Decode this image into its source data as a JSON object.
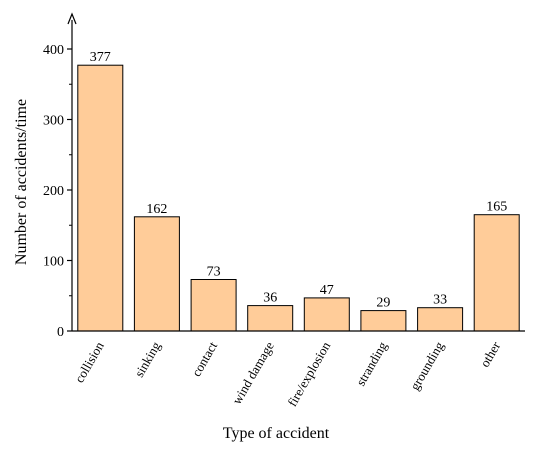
{
  "chart_data": {
    "type": "bar",
    "categories": [
      "collision",
      "sinking",
      "contact",
      "wind damage",
      "fire/explosion",
      "stranding",
      "grounding",
      "other"
    ],
    "values": [
      377,
      162,
      73,
      36,
      47,
      29,
      33,
      165
    ],
    "data_labels": [
      "377",
      "162",
      "73",
      "36",
      "47",
      "29",
      "33",
      "165"
    ],
    "title": "",
    "xlabel": "Type of accident",
    "ylabel": "Number of accidents/time",
    "ylim": [
      0,
      400
    ],
    "yticks": [
      0,
      100,
      200,
      300,
      400
    ],
    "grid": false,
    "legend": "none",
    "bar_color": "#FFCC99",
    "bar_edge_color": "#000000"
  }
}
